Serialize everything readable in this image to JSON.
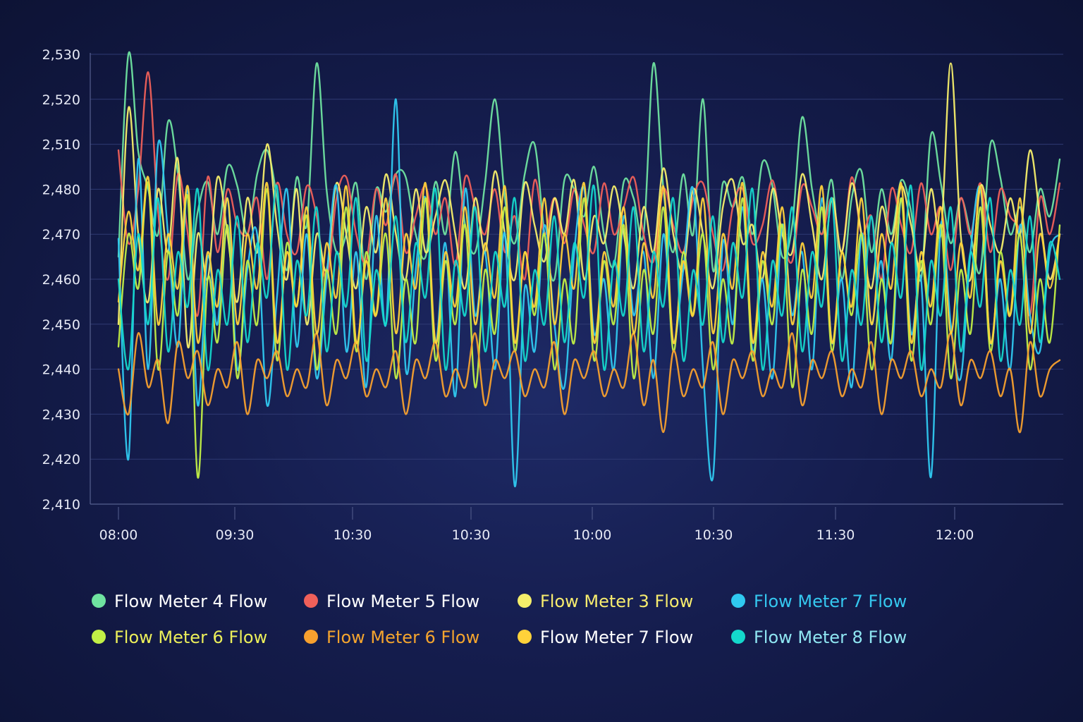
{
  "chart_data": {
    "type": "line",
    "title": "",
    "xlabel": "",
    "ylabel": "",
    "grid": true,
    "legend_position": "bottom",
    "y_ticks": [
      "2,410",
      "2,420",
      "2,430",
      "2,440",
      "2,450",
      "2,460",
      "2,470",
      "2,480",
      "2,510",
      "2,520",
      "2,530"
    ],
    "x_ticks": [
      "08:00",
      "09:30",
      "10:30",
      "10:30",
      "10:00",
      "10:30",
      "11:30",
      "12:00"
    ],
    "series": [
      {
        "name": "Flow Meter 4 Flow",
        "color": "#6fe3a0",
        "text_color": "#ffffff",
        "values": [
          2465,
          2532,
          2505,
          2480,
          2470,
          2515,
          2490,
          2460,
          2475,
          2485,
          2470,
          2495,
          2482,
          2470,
          2490,
          2506,
          2478,
          2462,
          2488,
          2472,
          2528,
          2480,
          2466,
          2470,
          2484,
          2460,
          2480,
          2475,
          2490,
          2488,
          2470,
          2465,
          2485,
          2470,
          2505,
          2472,
          2466,
          2484,
          2520,
          2478,
          2468,
          2490,
          2510,
          2470,
          2460,
          2486,
          2480,
          2474,
          2495,
          2470,
          2463,
          2485,
          2478,
          2470,
          2528,
          2480,
          2466,
          2490,
          2470,
          2520,
          2462,
          2484,
          2476,
          2488,
          2470,
          2498,
          2482,
          2465,
          2472,
          2516,
          2480,
          2470,
          2486,
          2460,
          2478,
          2492,
          2466,
          2480,
          2470,
          2486,
          2475,
          2460,
          2512,
          2484,
          2468,
          2478,
          2470,
          2462,
          2510,
          2488,
          2470,
          2476,
          2466,
          2480,
          2474,
          2500
        ]
      },
      {
        "name": "Flow Meter 5 Flow",
        "color": "#f0605a",
        "text_color": "#ffffff",
        "values": [
          2506,
          2468,
          2480,
          2526,
          2475,
          2460,
          2490,
          2470,
          2452,
          2488,
          2466,
          2480,
          2472,
          2470,
          2478,
          2460,
          2484,
          2470,
          2466,
          2482,
          2474,
          2460,
          2478,
          2488,
          2470,
          2464,
          2480,
          2472,
          2490,
          2466,
          2474,
          2482,
          2470,
          2478,
          2463,
          2488,
          2476,
          2470,
          2480,
          2466,
          2474,
          2460,
          2486,
          2470,
          2478,
          2468,
          2480,
          2472,
          2466,
          2484,
          2470,
          2476,
          2488,
          2470,
          2464,
          2480,
          2472,
          2466,
          2478,
          2484,
          2470,
          2462,
          2476,
          2480,
          2468,
          2472,
          2486,
          2470,
          2464,
          2482,
          2476,
          2470,
          2478,
          2466,
          2488,
          2470,
          2474,
          2460,
          2480,
          2472,
          2466,
          2484,
          2470,
          2476,
          2462,
          2478,
          2470,
          2484,
          2466,
          2480,
          2474,
          2470,
          2452,
          2478,
          2470,
          2484
        ]
      },
      {
        "name": "Flow Meter 3 Flow",
        "color": "#f5ee6a",
        "text_color": "#f7ec6e",
        "values": [
          2450,
          2518,
          2470,
          2455,
          2480,
          2466,
          2500,
          2445,
          2470,
          2460,
          2488,
          2470,
          2455,
          2478,
          2466,
          2510,
          2472,
          2460,
          2480,
          2450,
          2470,
          2462,
          2484,
          2470,
          2458,
          2476,
          2466,
          2490,
          2470,
          2460,
          2480,
          2466,
          2474,
          2486,
          2470,
          2458,
          2478,
          2466,
          2492,
          2470,
          2460,
          2484,
          2472,
          2464,
          2478,
          2470,
          2486,
          2460,
          2474,
          2468,
          2482,
          2470,
          2458,
          2476,
          2466,
          2494,
          2470,
          2462,
          2480,
          2470,
          2458,
          2476,
          2486,
          2468,
          2472,
          2460,
          2480,
          2470,
          2466,
          2490,
          2472,
          2460,
          2478,
          2466,
          2484,
          2470,
          2458,
          2476,
          2468,
          2482,
          2472,
          2462,
          2480,
          2470,
          2528,
          2470,
          2460,
          2482,
          2472,
          2466,
          2478,
          2470,
          2506,
          2474,
          2460,
          2470
        ]
      },
      {
        "name": "Flow Meter 7 Flow",
        "color": "#2fc9f0",
        "text_color": "#35c8f0",
        "values": [
          2469,
          2420,
          2500,
          2440,
          2510,
          2470,
          2445,
          2480,
          2432,
          2465,
          2450,
          2478,
          2440,
          2462,
          2470,
          2432,
          2456,
          2480,
          2445,
          2470,
          2438,
          2460,
          2482,
          2444,
          2466,
          2436,
          2474,
          2450,
          2520,
          2440,
          2462,
          2478,
          2446,
          2468,
          2434,
          2480,
          2452,
          2466,
          2440,
          2470,
          2414,
          2458,
          2444,
          2472,
          2450,
          2436,
          2466,
          2480,
          2448,
          2460,
          2440,
          2474,
          2452,
          2466,
          2438,
          2470,
          2446,
          2462,
          2480,
          2440,
          2416,
          2468,
          2450,
          2476,
          2444,
          2460,
          2438,
          2472,
          2452,
          2466,
          2440,
          2478,
          2446,
          2460,
          2436,
          2470,
          2450,
          2464,
          2442,
          2478,
          2448,
          2460,
          2416,
          2472,
          2450,
          2438,
          2466,
          2480,
          2446,
          2460,
          2440,
          2472,
          2452,
          2444,
          2466,
          2470
        ]
      },
      {
        "name": "Flow Meter 6 Flow",
        "color": "#c2f046",
        "text_color": "#ecef5a",
        "values": [
          2445,
          2470,
          2458,
          2484,
          2440,
          2466,
          2452,
          2478,
          2416,
          2460,
          2446,
          2472,
          2438,
          2464,
          2450,
          2480,
          2442,
          2468,
          2454,
          2474,
          2440,
          2462,
          2448,
          2476,
          2444,
          2466,
          2452,
          2470,
          2438,
          2460,
          2446,
          2478,
          2442,
          2464,
          2450,
          2472,
          2436,
          2462,
          2448,
          2476,
          2444,
          2466,
          2452,
          2470,
          2440,
          2460,
          2446,
          2478,
          2442,
          2464,
          2450,
          2472,
          2438,
          2462,
          2448,
          2476,
          2444,
          2466,
          2452,
          2470,
          2440,
          2460,
          2446,
          2478,
          2442,
          2464,
          2450,
          2472,
          2436,
          2462,
          2448,
          2476,
          2444,
          2466,
          2452,
          2470,
          2440,
          2460,
          2446,
          2478,
          2442,
          2464,
          2450,
          2472,
          2438,
          2462,
          2448,
          2476,
          2444,
          2466,
          2452,
          2470,
          2440,
          2460,
          2446,
          2472
        ]
      },
      {
        "name": "Flow Meter 6 Flow",
        "color": "#f7a02e",
        "text_color": "#f5a52e",
        "values": [
          2440,
          2430,
          2448,
          2436,
          2442,
          2428,
          2446,
          2438,
          2444,
          2432,
          2440,
          2436,
          2446,
          2430,
          2442,
          2438,
          2444,
          2434,
          2440,
          2436,
          2448,
          2432,
          2442,
          2438,
          2446,
          2434,
          2440,
          2436,
          2444,
          2430,
          2442,
          2438,
          2446,
          2434,
          2440,
          2436,
          2448,
          2432,
          2442,
          2438,
          2444,
          2434,
          2440,
          2436,
          2446,
          2430,
          2442,
          2438,
          2444,
          2434,
          2440,
          2436,
          2448,
          2432,
          2442,
          2426,
          2444,
          2434,
          2440,
          2436,
          2446,
          2430,
          2442,
          2438,
          2444,
          2434,
          2440,
          2436,
          2448,
          2432,
          2442,
          2438,
          2444,
          2434,
          2440,
          2436,
          2446,
          2430,
          2442,
          2438,
          2444,
          2434,
          2440,
          2436,
          2448,
          2432,
          2442,
          2438,
          2444,
          2434,
          2440,
          2426,
          2446,
          2434,
          2440,
          2442
        ]
      },
      {
        "name": "Flow Meter 7 Flow",
        "color": "#ffd23a",
        "text_color": "#ffffff",
        "values": [
          2455,
          2475,
          2462,
          2488,
          2450,
          2470,
          2458,
          2482,
          2446,
          2466,
          2454,
          2478,
          2450,
          2470,
          2458,
          2484,
          2446,
          2466,
          2454,
          2476,
          2448,
          2468,
          2456,
          2482,
          2446,
          2464,
          2452,
          2478,
          2448,
          2470,
          2458,
          2484,
          2446,
          2466,
          2454,
          2476,
          2450,
          2468,
          2456,
          2482,
          2446,
          2466,
          2454,
          2478,
          2450,
          2470,
          2458,
          2484,
          2446,
          2466,
          2454,
          2476,
          2448,
          2468,
          2456,
          2482,
          2446,
          2464,
          2452,
          2478,
          2448,
          2470,
          2458,
          2484,
          2446,
          2466,
          2454,
          2476,
          2450,
          2468,
          2456,
          2482,
          2446,
          2466,
          2454,
          2478,
          2450,
          2470,
          2458,
          2484,
          2446,
          2466,
          2454,
          2476,
          2448,
          2468,
          2456,
          2482,
          2446,
          2464,
          2452,
          2478,
          2448,
          2470,
          2458,
          2470
        ]
      },
      {
        "name": "Flow Meter 8 Flow",
        "color": "#14d8cc",
        "text_color": "#8fe6f2",
        "values": [
          2460,
          2440,
          2470,
          2450,
          2478,
          2444,
          2466,
          2454,
          2480,
          2440,
          2462,
          2450,
          2474,
          2446,
          2468,
          2456,
          2482,
          2440,
          2464,
          2452,
          2476,
          2444,
          2466,
          2454,
          2478,
          2442,
          2462,
          2450,
          2474,
          2446,
          2468,
          2456,
          2480,
          2440,
          2464,
          2452,
          2476,
          2444,
          2466,
          2454,
          2478,
          2442,
          2462,
          2450,
          2474,
          2446,
          2468,
          2456,
          2482,
          2440,
          2464,
          2452,
          2476,
          2444,
          2466,
          2454,
          2478,
          2442,
          2462,
          2450,
          2474,
          2446,
          2468,
          2456,
          2480,
          2440,
          2464,
          2452,
          2476,
          2444,
          2466,
          2454,
          2478,
          2442,
          2462,
          2450,
          2474,
          2446,
          2468,
          2456,
          2482,
          2440,
          2464,
          2452,
          2476,
          2444,
          2466,
          2454,
          2478,
          2442,
          2462,
          2450,
          2474,
          2446,
          2468,
          2460
        ]
      }
    ]
  }
}
